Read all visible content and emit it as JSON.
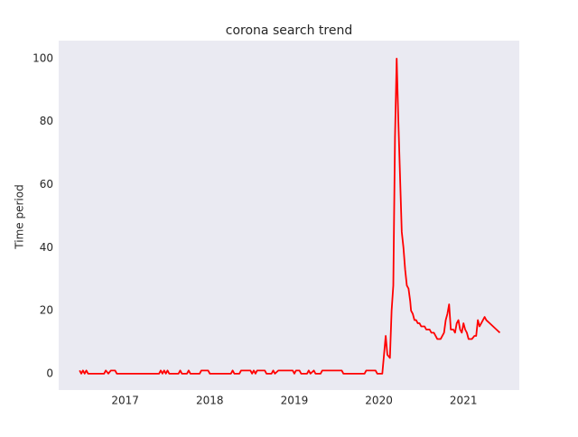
{
  "chart_data": {
    "type": "line",
    "title": "corona search trend",
    "ylabel": "Time period",
    "x": [
      2016.46,
      2016.48,
      2016.5,
      2016.52,
      2016.54,
      2016.56,
      2016.75,
      2016.77,
      2016.8,
      2016.83,
      2016.88,
      2016.9,
      2017.4,
      2017.42,
      2017.44,
      2017.46,
      2017.48,
      2017.5,
      2017.52,
      2017.63,
      2017.65,
      2017.67,
      2017.73,
      2017.75,
      2017.77,
      2017.88,
      2017.9,
      2017.98,
      2018.0,
      2018.25,
      2018.27,
      2018.29,
      2018.35,
      2018.37,
      2018.48,
      2018.5,
      2018.52,
      2018.54,
      2018.56,
      2018.65,
      2018.67,
      2018.73,
      2018.75,
      2018.77,
      2018.81,
      2018.98,
      2019.0,
      2019.02,
      2019.06,
      2019.08,
      2019.15,
      2019.17,
      2019.19,
      2019.23,
      2019.25,
      2019.31,
      2019.33,
      2019.42,
      2019.56,
      2019.58,
      2019.83,
      2019.85,
      2019.96,
      2019.98,
      2020.04,
      2020.08,
      2020.1,
      2020.13,
      2020.15,
      2020.17,
      2020.19,
      2020.21,
      2020.23,
      2020.27,
      2020.29,
      2020.31,
      2020.33,
      2020.35,
      2020.37,
      2020.38,
      2020.4,
      2020.42,
      2020.44,
      2020.46,
      2020.48,
      2020.5,
      2020.54,
      2020.56,
      2020.6,
      2020.62,
      2020.65,
      2020.67,
      2020.69,
      2020.73,
      2020.75,
      2020.77,
      2020.79,
      2020.81,
      2020.83,
      2020.85,
      2020.88,
      2020.9,
      2020.92,
      2020.94,
      2020.96,
      2020.98,
      2021.0,
      2021.02,
      2021.04,
      2021.06,
      2021.1,
      2021.13,
      2021.15,
      2021.17,
      2021.19,
      2021.21,
      2021.25,
      2021.27,
      2021.31,
      2021.35,
      2021.39,
      2021.43
    ],
    "series": [
      {
        "name": "corona",
        "color": "#ff0000",
        "values": [
          1,
          0,
          1,
          0,
          1,
          0,
          0,
          1,
          0,
          1,
          1,
          0,
          0,
          1,
          0,
          1,
          0,
          1,
          0,
          0,
          1,
          0,
          0,
          1,
          0,
          0,
          1,
          1,
          0,
          0,
          1,
          0,
          0,
          1,
          1,
          0,
          1,
          0,
          1,
          1,
          0,
          0,
          1,
          0,
          1,
          1,
          0,
          1,
          1,
          0,
          0,
          1,
          0,
          1,
          0,
          0,
          1,
          1,
          1,
          0,
          0,
          1,
          1,
          0,
          0,
          12,
          6,
          5,
          20,
          28,
          75,
          100,
          80,
          45,
          40,
          33,
          28,
          27,
          23,
          20,
          19,
          17,
          17,
          16,
          16,
          15,
          15,
          14,
          14,
          13,
          13,
          12,
          11,
          11,
          12,
          13,
          17,
          19,
          22,
          14,
          14,
          13,
          16,
          17,
          14,
          13,
          16,
          14,
          13,
          11,
          11,
          12,
          12,
          17,
          15,
          16,
          18,
          17,
          16,
          15,
          14,
          13
        ]
      }
    ],
    "xlim": [
      2016.213,
      2021.66
    ],
    "xticks": [
      2017,
      2018,
      2019,
      2020,
      2021
    ],
    "ylim": [
      -5.2,
      105.7
    ],
    "yticks": [
      0,
      20,
      40,
      60,
      80,
      100
    ],
    "grid": false
  }
}
